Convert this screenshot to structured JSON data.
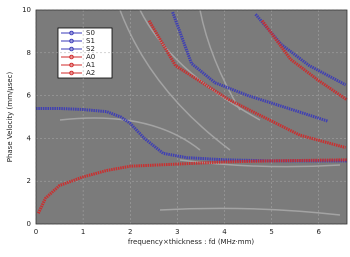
{
  "chart_data": {
    "type": "line",
    "xlabel": "frequency×thickness : fd (MHz·mm)",
    "ylabel": "Phase Velocity (mm/μsec)",
    "xlim": [
      0,
      6.6
    ],
    "ylim": [
      0,
      10
    ],
    "xticks": [
      0,
      1,
      2,
      3,
      4,
      5,
      6
    ],
    "yticks": [
      0,
      2,
      4,
      6,
      8,
      10
    ],
    "grid": true,
    "legend": "upper left",
    "series": [
      {
        "name": "S0",
        "color": "#3a3ab8",
        "x": [
          0,
          0.5,
          1,
          1.5,
          1.8,
          2,
          2.3,
          2.7,
          3.2,
          4,
          5,
          6.6
        ],
        "values": [
          5.4,
          5.4,
          5.35,
          5.25,
          5.0,
          4.7,
          4.0,
          3.3,
          3.1,
          3.0,
          2.95,
          2.95
        ]
      },
      {
        "name": "S1",
        "color": "#3a3ab8",
        "x": [
          2.9,
          3.3,
          3.8,
          4.5,
          5.5,
          6.2
        ],
        "values": [
          9.9,
          7.5,
          6.6,
          6.0,
          5.3,
          4.8
        ]
      },
      {
        "name": "S2",
        "color": "#3a3ab8",
        "x": [
          4.66,
          5.2,
          5.8,
          6.57
        ],
        "values": [
          9.8,
          8.4,
          7.4,
          6.5
        ]
      },
      {
        "name": "A0",
        "color": "#d02828",
        "x": [
          0.05,
          0.2,
          0.5,
          1,
          1.5,
          2,
          3,
          4,
          5,
          6.6
        ],
        "values": [
          0.5,
          1.2,
          1.8,
          2.2,
          2.5,
          2.7,
          2.8,
          2.9,
          2.95,
          3.0
        ]
      },
      {
        "name": "A1",
        "color": "#d02828",
        "x": [
          2.4,
          2.96,
          4.1,
          5.6,
          6.57
        ],
        "values": [
          9.5,
          7.4,
          5.8,
          4.15,
          3.57
        ]
      },
      {
        "name": "A2",
        "color": "#d02828",
        "x": [
          4.8,
          5.4,
          6.0,
          6.6
        ],
        "values": [
          9.5,
          7.7,
          6.7,
          5.8
        ]
      }
    ]
  }
}
